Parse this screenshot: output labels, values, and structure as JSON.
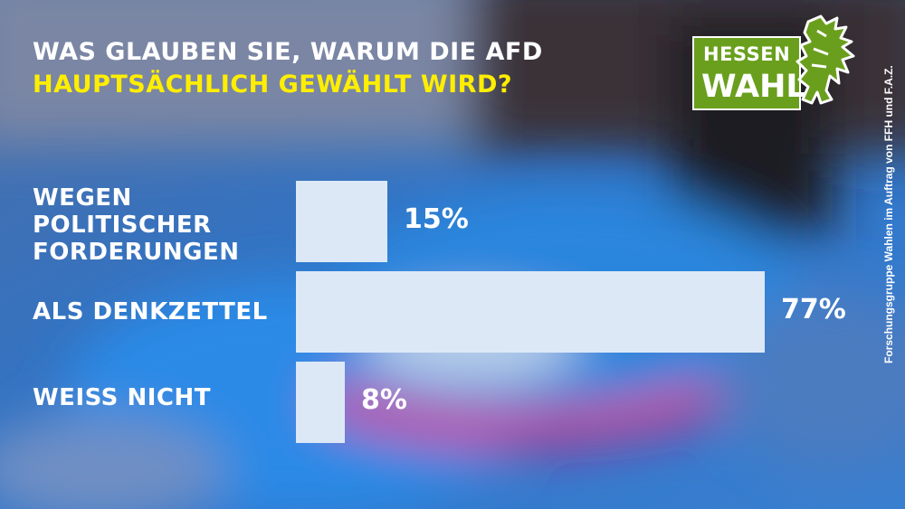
{
  "header": {
    "title_line1": "WAS GLAUBEN SIE, WARUM DIE AFD",
    "title_line2": "HAUPTSÄCHLICH GEWÄHLT WIRD?"
  },
  "logo": {
    "line1": "HESSEN",
    "line2": "WAHL",
    "color": "#6a9f1d",
    "icon": "lion-icon"
  },
  "source": "Forschungsgruppe Wahlen im Auftrag von FFH und F.A.Z.",
  "colors": {
    "bar": "#dde8f7",
    "title_accent": "#ffee00",
    "title_primary": "#ffffff"
  },
  "chart_data": {
    "type": "bar",
    "orientation": "horizontal",
    "categories": [
      "WEGEN POLITISCHER FORDERUNGEN",
      "ALS DENKZETTEL",
      "WEISS NICHT"
    ],
    "values": [
      15,
      77,
      8
    ],
    "value_labels": [
      "15%",
      "77%",
      "8%"
    ],
    "unit": "%",
    "xlim": [
      0,
      100
    ],
    "grid": false,
    "legend": "none",
    "title": "WAS GLAUBEN SIE, WARUM DIE AFD HAUPTSÄCHLICH GEWÄHLT WIRD?",
    "xlabel": "",
    "ylabel": ""
  }
}
